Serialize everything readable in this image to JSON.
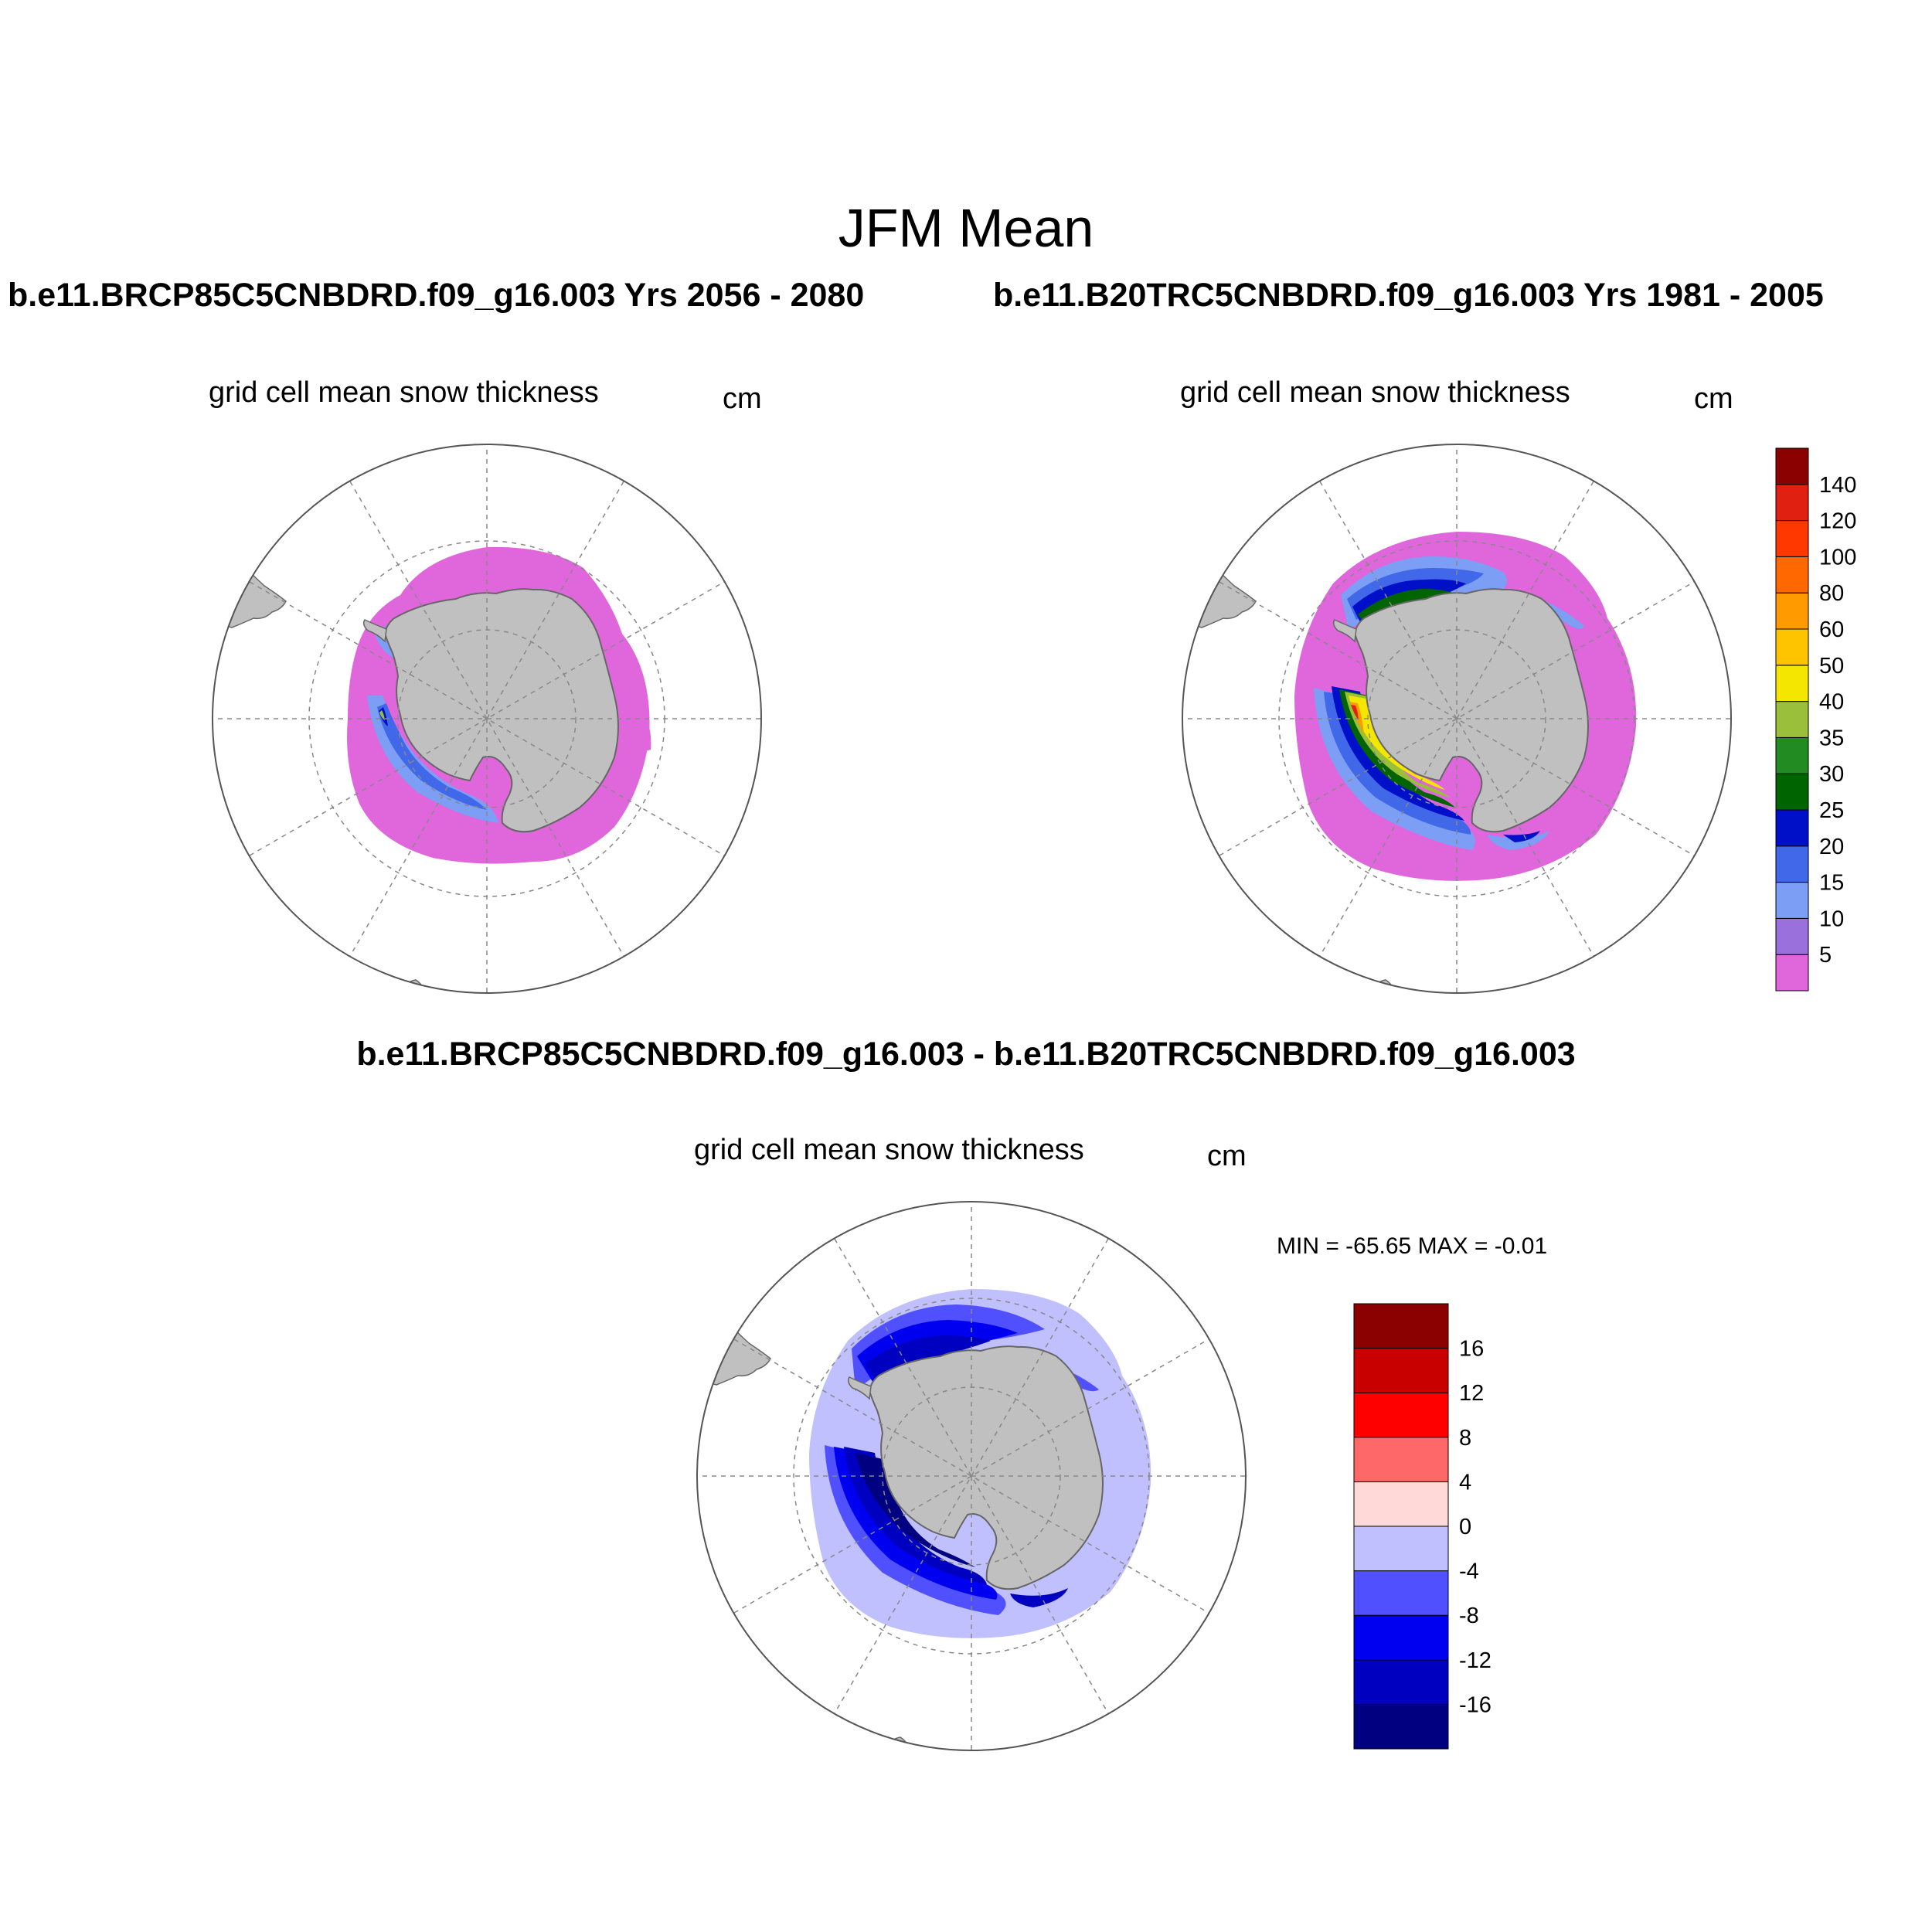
{
  "figure": {
    "title": "JFM Mean",
    "run_left": "b.e11.BRCP85C5CNBDRD.f09_g16.003  Yrs 2056 - 2080",
    "run_right": "b.e11.B20TRC5CNBDRD.f09_g16.003  Yrs 1981 - 2005",
    "diff_title": "b.e11.BRCP85C5CNBDRD.f09_g16.003 - b.e11.B20TRC5CNBDRD.f09_g16.003"
  },
  "panels": {
    "future": {
      "variable": "grid cell mean snow thickness",
      "units": "cm"
    },
    "historical": {
      "variable": "grid cell mean snow thickness",
      "units": "cm"
    },
    "difference": {
      "variable": "grid cell mean snow thickness",
      "units": "cm",
      "min_max": "MIN = -65.65 MAX =  -0.01"
    }
  },
  "colorbar_abs": {
    "colors": [
      "#e066dc",
      "#9a70dc",
      "#7d9ef5",
      "#4068e8",
      "#0010c8",
      "#006400",
      "#228b22",
      "#9abf3a",
      "#f5e600",
      "#ffc400",
      "#ff9a00",
      "#ff6800",
      "#ff3800",
      "#e02010",
      "#8b0000"
    ],
    "labels": [
      "5",
      "10",
      "15",
      "20",
      "25",
      "30",
      "35",
      "40",
      "50",
      "60",
      "80",
      "100",
      "120",
      "140"
    ]
  },
  "colorbar_diff": {
    "colors": [
      "#000080",
      "#0000c0",
      "#0000f0",
      "#5050ff",
      "#c0c0ff",
      "#ffd8d8",
      "#ff6868",
      "#ff0000",
      "#c80000",
      "#8b0000"
    ],
    "labels": [
      "-16",
      "-12",
      "-8",
      "-4",
      "0",
      "4",
      "8",
      "12",
      "16"
    ]
  },
  "map_colors": {
    "land": "#c0c0c0",
    "coast": "#666666",
    "grid": "#888888",
    "frame": "#555555"
  }
}
